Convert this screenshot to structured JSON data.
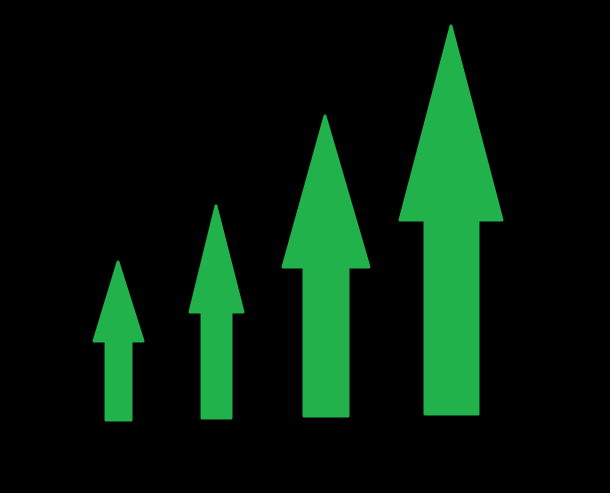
{
  "background_color": "#000000",
  "arrow_color": "#22b24c",
  "arrows": [
    {
      "icon": "up-arrow-icon",
      "size_rank": 1
    },
    {
      "icon": "up-arrow-icon",
      "size_rank": 2
    },
    {
      "icon": "up-arrow-icon",
      "size_rank": 3
    },
    {
      "icon": "up-arrow-icon",
      "size_rank": 4
    }
  ]
}
